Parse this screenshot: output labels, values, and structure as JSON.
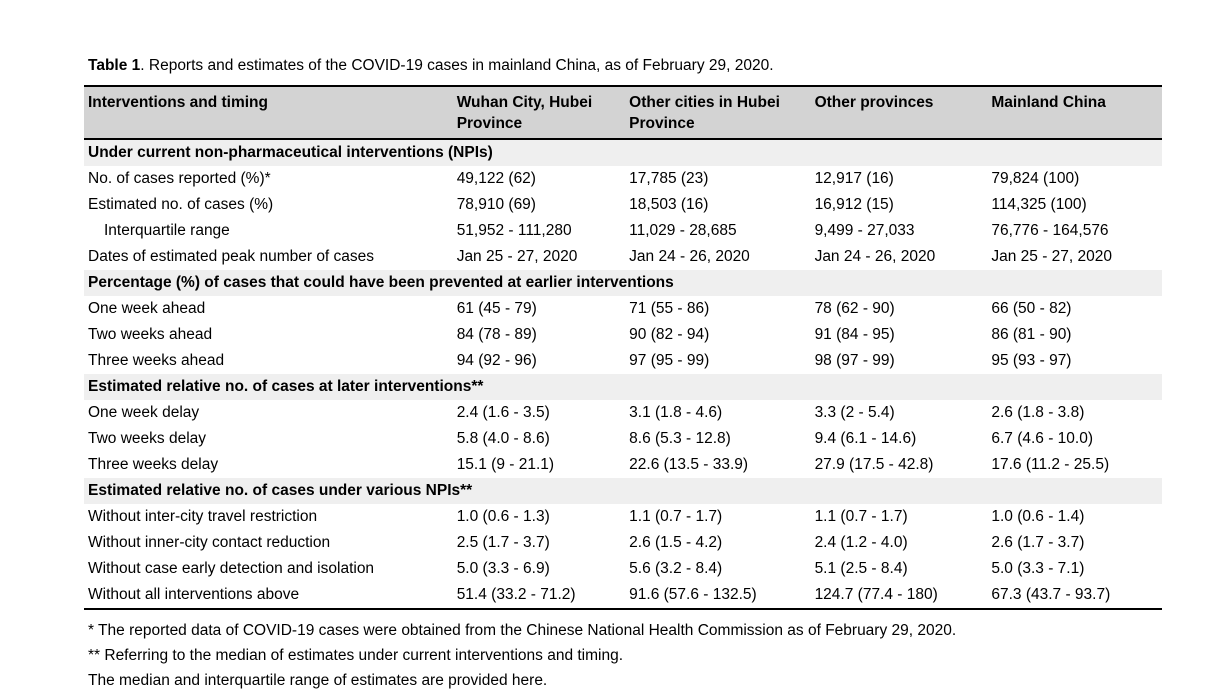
{
  "title": {
    "label": "Table 1",
    "text": ". Reports and estimates of the COVID-19 cases in mainland China, as of February 29, 2020."
  },
  "table": {
    "columns": [
      "Interventions and timing",
      "Wuhan City, Hubei Province",
      "Other cities in Hubei Province",
      "Other provinces",
      "Mainland China"
    ],
    "sections": [
      {
        "header": "Under current non-pharmaceutical interventions (NPIs)",
        "rows": [
          {
            "label": "No. of cases reported (%)*",
            "indent": false,
            "values": [
              "49,122 (62)",
              "17,785 (23)",
              "12,917 (16)",
              "79,824 (100)"
            ]
          },
          {
            "label": "Estimated no. of cases (%)",
            "indent": false,
            "values": [
              "78,910 (69)",
              "18,503 (16)",
              "16,912 (15)",
              "114,325 (100)"
            ]
          },
          {
            "label": "Interquartile range",
            "indent": true,
            "values": [
              "51,952 - 111,280",
              "11,029 - 28,685",
              "9,499 - 27,033",
              "76,776 - 164,576"
            ]
          },
          {
            "label": "Dates of estimated peak number of cases",
            "indent": false,
            "values": [
              "Jan 25 - 27, 2020",
              "Jan 24 - 26, 2020",
              "Jan 24 - 26, 2020",
              "Jan 25 - 27, 2020"
            ]
          }
        ]
      },
      {
        "header": "Percentage (%) of cases that could have been prevented at earlier interventions",
        "rows": [
          {
            "label": "One week ahead",
            "indent": false,
            "values": [
              "61 (45 - 79)",
              "71 (55 - 86)",
              "78 (62 - 90)",
              "66 (50 - 82)"
            ]
          },
          {
            "label": "Two weeks ahead",
            "indent": false,
            "values": [
              "84 (78 - 89)",
              "90 (82 - 94)",
              "91 (84 - 95)",
              "86 (81 - 90)"
            ]
          },
          {
            "label": "Three weeks ahead",
            "indent": false,
            "values": [
              "94 (92 - 96)",
              "97 (95 - 99)",
              "98 (97 - 99)",
              "95 (93 - 97)"
            ]
          }
        ]
      },
      {
        "header": "Estimated relative no. of cases at later interventions**",
        "rows": [
          {
            "label": "One week delay",
            "indent": false,
            "values": [
              "2.4 (1.6 - 3.5)",
              "3.1 (1.8 - 4.6)",
              "3.3 (2 - 5.4)",
              "2.6 (1.8 - 3.8)"
            ]
          },
          {
            "label": "Two weeks delay",
            "indent": false,
            "values": [
              "5.8 (4.0 - 8.6)",
              "8.6 (5.3 - 12.8)",
              "9.4 (6.1 - 14.6)",
              "6.7 (4.6 - 10.0)"
            ]
          },
          {
            "label": "Three weeks delay",
            "indent": false,
            "values": [
              "15.1 (9 - 21.1)",
              "22.6 (13.5 - 33.9)",
              "27.9 (17.5 - 42.8)",
              "17.6 (11.2 - 25.5)"
            ]
          }
        ]
      },
      {
        "header": "Estimated relative no. of cases under various NPIs**",
        "rows": [
          {
            "label": "Without inter-city travel restriction",
            "indent": false,
            "values": [
              "1.0 (0.6 - 1.3)",
              "1.1 (0.7 - 1.7)",
              "1.1 (0.7 - 1.7)",
              "1.0 (0.6 - 1.4)"
            ]
          },
          {
            "label": "Without inner-city contact reduction",
            "indent": false,
            "values": [
              "2.5 (1.7 - 3.7)",
              "2.6 (1.5 - 4.2)",
              "2.4 (1.2 - 4.0)",
              "2.6 (1.7 - 3.7)"
            ]
          },
          {
            "label": "Without case early detection and isolation",
            "indent": false,
            "values": [
              "5.0 (3.3 - 6.9)",
              "5.6 (3.2 - 8.4)",
              "5.1 (2.5 - 8.4)",
              "5.0 (3.3 - 7.1)"
            ]
          },
          {
            "label": "Without all interventions above",
            "indent": false,
            "values": [
              "51.4 (33.2 - 71.2)",
              "91.6 (57.6 - 132.5)",
              "124.7 (77.4 - 180)",
              "67.3 (43.7 - 93.7)"
            ]
          }
        ]
      }
    ]
  },
  "footnotes": [
    "* The reported data of COVID-19 cases were obtained from the Chinese National Health Commission as of February 29, 2020.",
    "** Referring to the median of estimates under current interventions and timing.",
    "The median and interquartile range of estimates are provided here."
  ],
  "colors": {
    "page_bg": "#ffffff",
    "header_row_bg": "#d3d3d3",
    "section_row_bg": "#efefef",
    "border": "#000000",
    "text": "#000000"
  }
}
